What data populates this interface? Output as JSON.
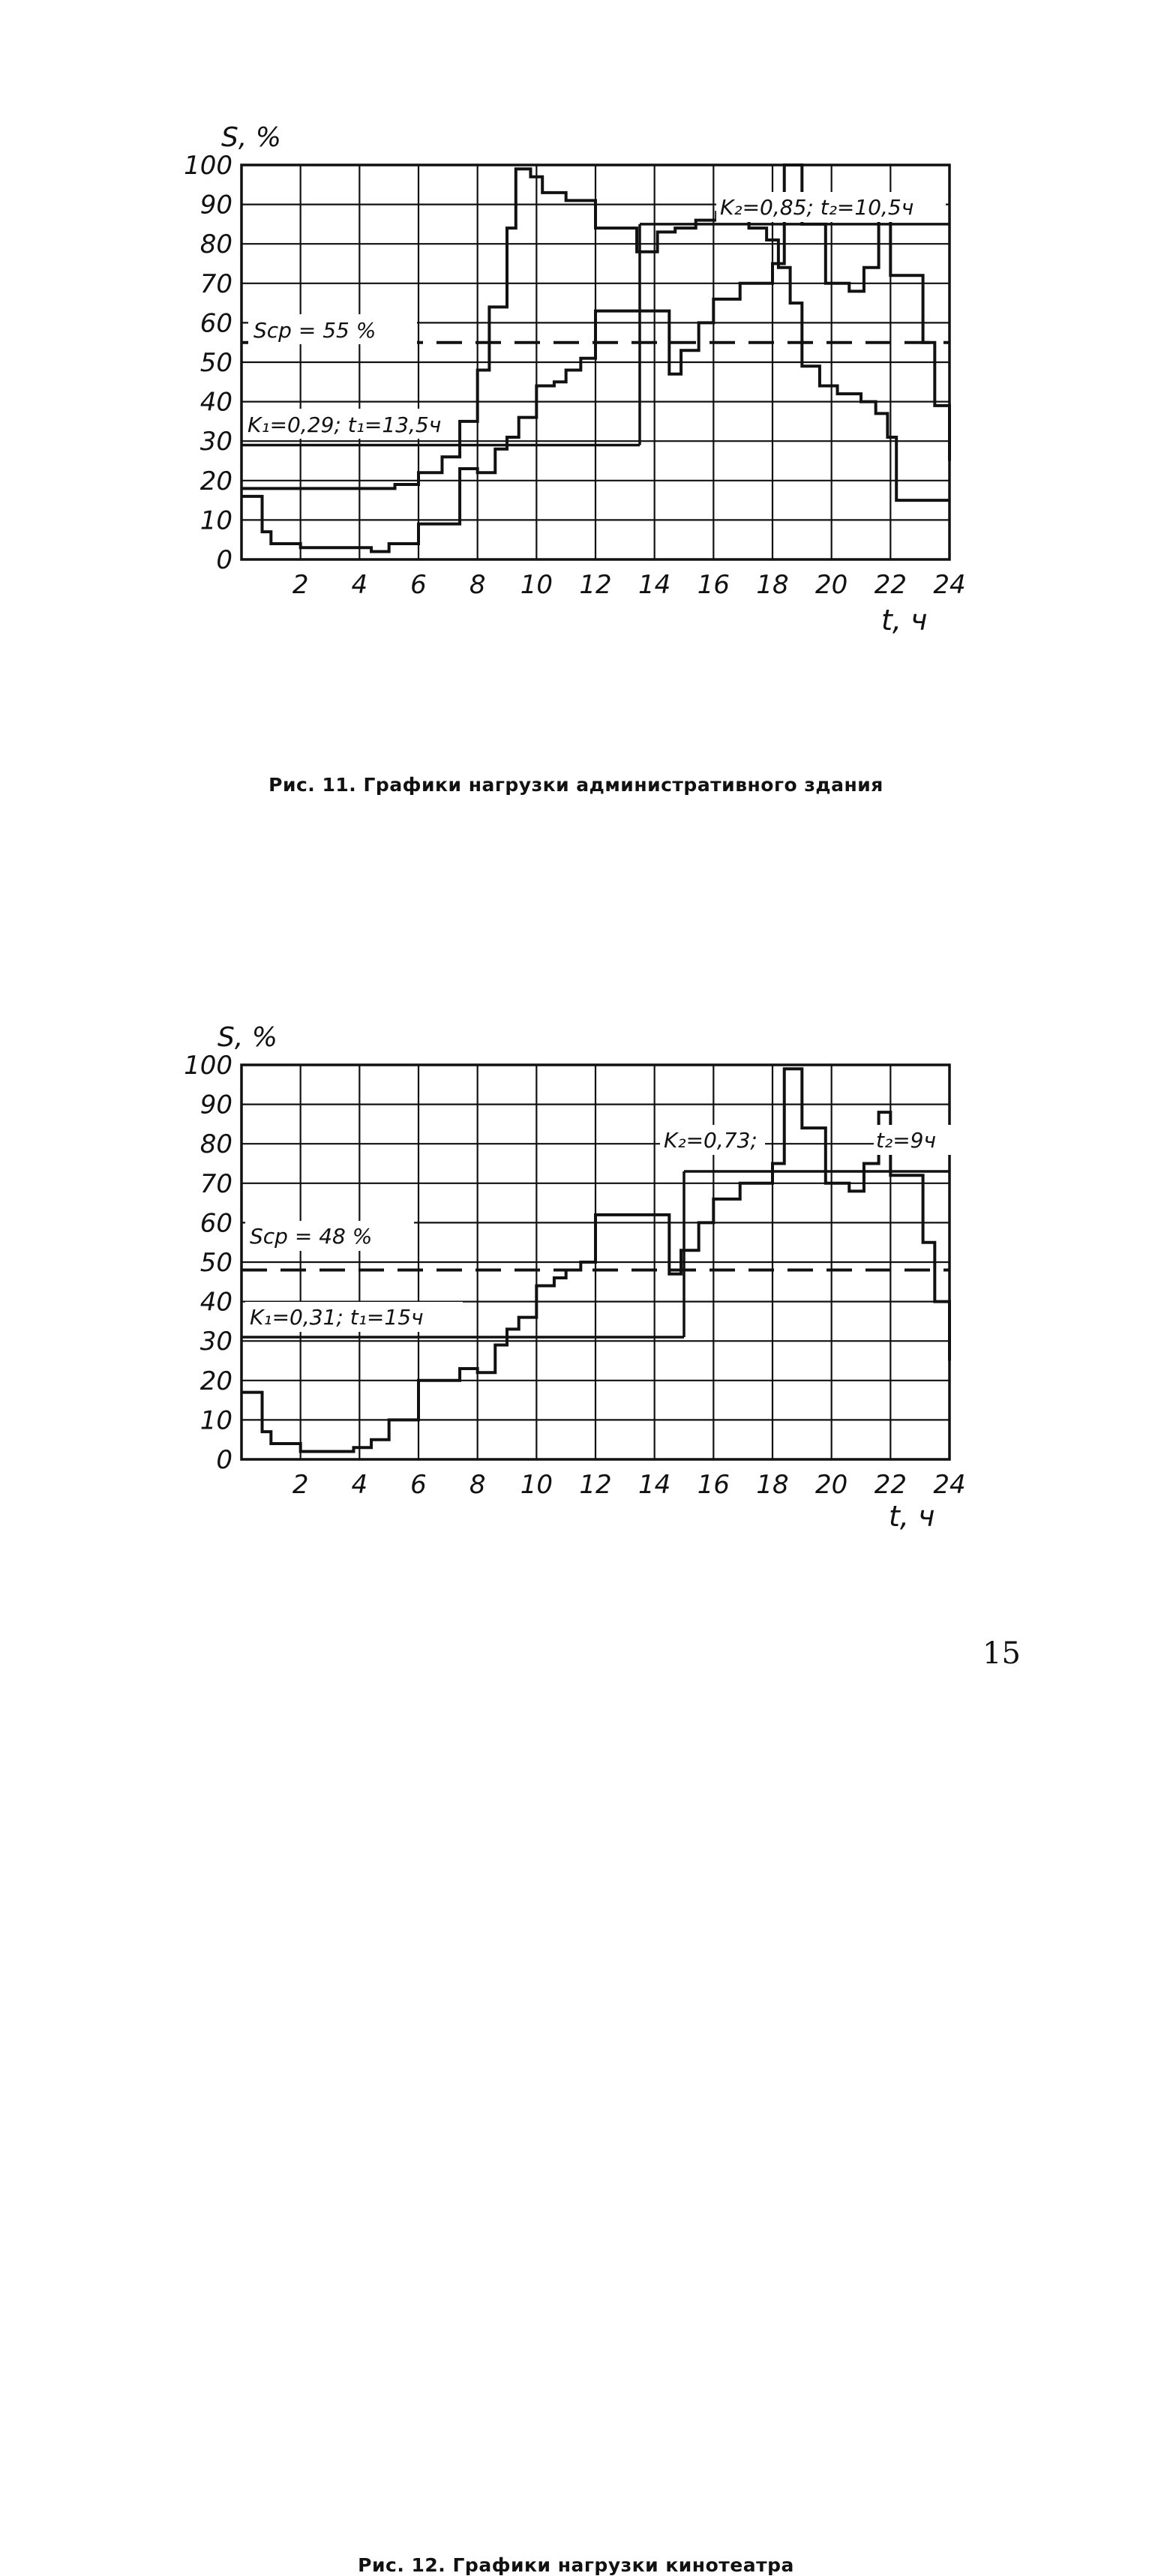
{
  "chart_data": [
    {
      "type": "line",
      "title": "",
      "ylabel": "S, %",
      "xlabel": "t, ч",
      "ylim": [
        0,
        100
      ],
      "xlim": [
        0,
        24
      ],
      "y_ticks": [
        0,
        10,
        20,
        30,
        40,
        50,
        60,
        70,
        80,
        90,
        100
      ],
      "y_tick_labels": [
        "0",
        "10",
        "20",
        "30",
        "40",
        "50",
        "60",
        "70",
        "80",
        "90",
        "100"
      ],
      "x_ticks": [
        2,
        4,
        6,
        8,
        10,
        12,
        14,
        16,
        18,
        20,
        22,
        24
      ],
      "x_tick_labels": [
        "2",
        "4",
        "6",
        "8",
        "10",
        "12",
        "14",
        "16",
        "18",
        "20",
        "22",
        "24"
      ],
      "grid": true,
      "series": [
        {
          "style": "step",
          "x": [
            0,
            5.2,
            6,
            6.8,
            7.4,
            8,
            8.4,
            9,
            9.3,
            9.8,
            10.2,
            11,
            12,
            13.4,
            14.1,
            14.7,
            15.4,
            16.1,
            17.2,
            17.8,
            18.2,
            18.6,
            19,
            19.6,
            20.2,
            21,
            21.5,
            21.9,
            22.2,
            24
          ],
          "y": [
            18,
            19,
            22,
            26,
            35,
            48,
            64,
            84,
            99,
            97,
            93,
            91,
            84,
            78,
            83,
            84,
            86,
            88,
            84,
            81,
            74,
            65,
            49,
            44,
            42,
            40,
            37,
            31,
            15,
            15
          ]
        },
        {
          "style": "step",
          "x": [
            0,
            0.7,
            1,
            2,
            3.8,
            4.4,
            5,
            6,
            7.4,
            8,
            8.6,
            9,
            9.4,
            10,
            10.6,
            11,
            11.5,
            12,
            14,
            14.5,
            14.9,
            15.5,
            16,
            16.9,
            18,
            18.4,
            19,
            19.8,
            20.6,
            21.1,
            21.6,
            22,
            23.1,
            23.5,
            24
          ],
          "y": [
            16,
            7,
            4,
            3,
            3,
            2,
            4,
            9,
            23,
            22,
            28,
            31,
            36,
            44,
            45,
            48,
            51,
            63,
            63,
            47,
            53,
            60,
            66,
            70,
            75,
            100,
            85,
            70,
            68,
            74,
            88,
            72,
            55,
            39,
            25
          ]
        }
      ],
      "reference_lines": [
        {
          "label": "S_cp",
          "y": 55,
          "style": "dashed"
        },
        {
          "label": "K_1",
          "y": 29,
          "x_end": 13.5,
          "style": "solid"
        },
        {
          "label": "K_2",
          "y": 85,
          "x_start": 13.5,
          "style": "solid"
        }
      ],
      "annotations": [
        "Sср = 55 %",
        "K₁ = 0,29; t₁ = 13,5ч",
        "K₂ = 0,85; t₂ = 10,5ч"
      ]
    },
    {
      "type": "line",
      "title": "",
      "ylabel": "S, %",
      "xlabel": "t, ч",
      "ylim": [
        0,
        100
      ],
      "xlim": [
        0,
        24
      ],
      "y_ticks": [
        0,
        10,
        20,
        30,
        40,
        50,
        60,
        70,
        80,
        90,
        100
      ],
      "y_tick_labels": [
        "0",
        "10",
        "20",
        "30",
        "40",
        "50",
        "60",
        "70",
        "80",
        "90",
        "100"
      ],
      "x_ticks": [
        2,
        4,
        6,
        8,
        10,
        12,
        14,
        16,
        18,
        20,
        22,
        24
      ],
      "x_tick_labels": [
        "2",
        "4",
        "6",
        "8",
        "10",
        "12",
        "14",
        "16",
        "18",
        "20",
        "22",
        "24"
      ],
      "grid": true,
      "series": [
        {
          "style": "step",
          "x": [
            0,
            0.7,
            1,
            2,
            3.8,
            4.4,
            5,
            6,
            7.4,
            8,
            8.6,
            9,
            9.4,
            10,
            10.6,
            11,
            11.5,
            12,
            14,
            14.5,
            14.9,
            15.5,
            16,
            16.9,
            18,
            18.4,
            19,
            19.8,
            20.6,
            21.1,
            21.6,
            22,
            23.1,
            23.5,
            24
          ],
          "y": [
            17,
            7,
            4,
            2,
            3,
            5,
            10,
            20,
            23,
            22,
            29,
            33,
            36,
            44,
            46,
            48,
            50,
            62,
            62,
            47,
            53,
            60,
            66,
            70,
            75,
            99,
            84,
            70,
            68,
            75,
            88,
            72,
            55,
            40,
            25
          ]
        }
      ],
      "reference_lines": [
        {
          "label": "S_cp",
          "y": 48,
          "style": "dashed"
        },
        {
          "label": "K_1",
          "y": 31,
          "x_end": 15,
          "style": "solid"
        },
        {
          "label": "K_2",
          "y": 73,
          "x_start": 15,
          "style": "solid"
        }
      ],
      "annotations": [
        "Sср = 48 %",
        "K₁ = 0,31; t₁ = 15ч",
        "K₂ = 0,73; t₂ = 9ч"
      ]
    }
  ],
  "captions": {
    "fig1": "Рис. 11. Графики нагрузки административного здания",
    "fig2": "Рис. 12. Графики нагрузки кинотеатра"
  },
  "labels": {
    "fig1": {
      "ylabel": "S, %",
      "xlabel": "t, ч",
      "scp": "Sср = 55 %",
      "k1": "K₁=0,29; t₁=13,5ч",
      "k2": "K₂=0,85; t₂=10,5ч"
    },
    "fig2": {
      "ylabel": "S, %",
      "xlabel": "t, ч",
      "scp": "Sср = 48 %",
      "k1": "K₁=0,31; t₁=15ч",
      "k2": "K₂=0,73;",
      "t2": "t₂=9ч"
    }
  },
  "page_number": "15",
  "colors": {
    "ink": "#111111",
    "background": "#ffffff"
  }
}
